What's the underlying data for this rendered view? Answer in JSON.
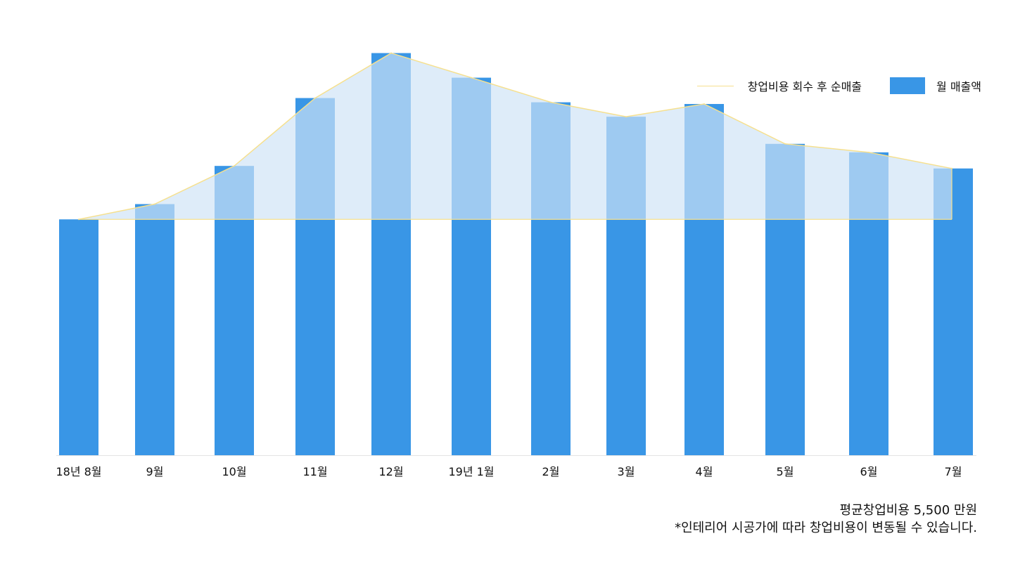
{
  "chart_data": {
    "type": "bar",
    "categories": [
      "18년 8월",
      "9월",
      "10월",
      "11월",
      "12월",
      "19년 1월",
      "2월",
      "3월",
      "4월",
      "5월",
      "6월",
      "7월"
    ],
    "series": [
      {
        "name": "월 매출액",
        "type": "bar",
        "color": "#3996e6",
        "values": [
          278,
          296,
          341,
          421,
          474,
          445,
          416,
          399,
          414,
          367,
          357,
          338
        ]
      },
      {
        "name": "창업비용 회수 후 순매출",
        "type": "area",
        "color": "#f6e08e",
        "fill": "#cfe3f6",
        "baseline": 278,
        "values": [
          0,
          18,
          63,
          143,
          196,
          167,
          138,
          121,
          136,
          89,
          79,
          60
        ]
      }
    ],
    "ylim": [
      0,
      520
    ],
    "grid": false,
    "legend": "top-right",
    "xlabel": "",
    "ylabel": ""
  },
  "legend": {
    "net_label": "창업비용 회수 후 순매출",
    "bar_label": "월 매출액"
  },
  "footnote": {
    "line1": "평균창업비용 5,500 만원",
    "line2": "*인테리어 시공가에 따라 창업비용이 변동될 수 있습니다."
  }
}
